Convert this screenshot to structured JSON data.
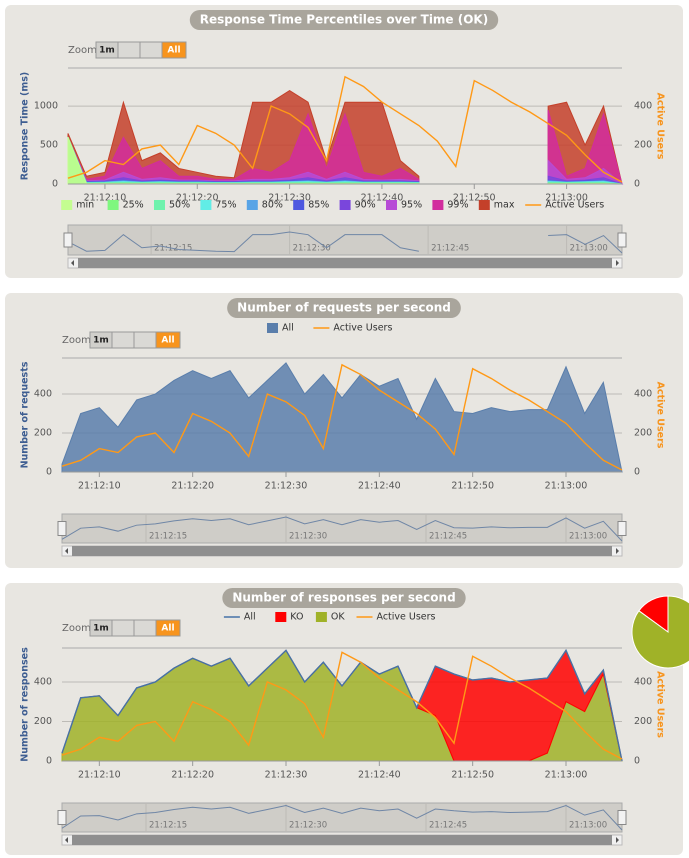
{
  "chart_data": [
    {
      "type": "area",
      "title": "Response Time Percentiles over Time (OK)",
      "ylabel": "Response Time (ms)",
      "y2label": "Active Users",
      "zoom": {
        "label": "Zoom",
        "buttons": [
          "1m",
          "All"
        ]
      },
      "x": [
        "21:12:06",
        "21:12:08",
        "21:12:10",
        "21:12:12",
        "21:12:14",
        "21:12:16",
        "21:12:18",
        "21:12:20",
        "21:12:22",
        "21:12:24",
        "21:12:26",
        "21:12:28",
        "21:12:30",
        "21:12:32",
        "21:12:34",
        "21:12:36",
        "21:12:38",
        "21:12:40",
        "21:12:42",
        "21:12:44",
        "21:12:46",
        "21:12:48",
        "21:12:50",
        "21:12:52",
        "21:12:54",
        "21:12:56",
        "21:12:58",
        "21:13:00",
        "21:13:02",
        "21:13:04",
        "21:13:06"
      ],
      "xticks": [
        "21:12:10",
        "21:12:20",
        "21:12:30",
        "21:12:40",
        "21:12:50",
        "21:13:00"
      ],
      "navigator_ticks": [
        "21:12:15",
        "21:12:30",
        "21:12:45",
        "21:13:00"
      ],
      "ylim": [
        0,
        1490
      ],
      "yticks": [
        0,
        500,
        1000
      ],
      "y2lim": [
        0,
        595
      ],
      "y2ticks": [
        0,
        200,
        400
      ],
      "grid": true,
      "stacked": false,
      "series": [
        {
          "name": "min",
          "kind": "area",
          "color": "#c4fd90",
          "values": [
            600,
            5,
            5,
            5,
            5,
            5,
            5,
            5,
            5,
            5,
            5,
            5,
            5,
            5,
            5,
            5,
            5,
            5,
            5,
            5,
            null,
            null,
            null,
            null,
            null,
            null,
            5,
            5,
            5,
            5,
            0
          ]
        },
        {
          "name": "25%",
          "kind": "area",
          "color": "#7ff77f",
          "values": [
            600,
            8,
            9,
            10,
            9,
            10,
            9,
            9,
            8,
            8,
            9,
            9,
            10,
            10,
            9,
            10,
            9,
            9,
            9,
            8,
            null,
            null,
            null,
            null,
            null,
            null,
            10,
            9,
            10,
            10,
            0
          ]
        },
        {
          "name": "50%",
          "kind": "area",
          "color": "#6ff2ad",
          "values": [
            600,
            12,
            14,
            18,
            14,
            16,
            14,
            14,
            12,
            12,
            14,
            14,
            16,
            18,
            14,
            18,
            14,
            14,
            14,
            12,
            null,
            null,
            null,
            null,
            null,
            null,
            18,
            14,
            16,
            18,
            0
          ]
        },
        {
          "name": "75%",
          "kind": "area",
          "color": "#61ede6",
          "values": [
            600,
            18,
            20,
            30,
            20,
            25,
            20,
            20,
            18,
            18,
            20,
            20,
            25,
            30,
            20,
            30,
            20,
            20,
            20,
            18,
            null,
            null,
            null,
            null,
            null,
            null,
            30,
            20,
            25,
            30,
            0
          ]
        },
        {
          "name": "80%",
          "kind": "area",
          "color": "#58a4e6",
          "values": [
            600,
            20,
            25,
            40,
            25,
            30,
            25,
            25,
            20,
            20,
            25,
            25,
            30,
            40,
            25,
            40,
            25,
            25,
            25,
            20,
            null,
            null,
            null,
            null,
            null,
            null,
            40,
            25,
            30,
            40,
            0
          ]
        },
        {
          "name": "85%",
          "kind": "area",
          "color": "#4f59e0",
          "values": [
            600,
            25,
            30,
            50,
            30,
            40,
            30,
            30,
            25,
            25,
            30,
            30,
            40,
            50,
            30,
            50,
            30,
            30,
            30,
            25,
            null,
            null,
            null,
            null,
            null,
            null,
            50,
            30,
            40,
            50,
            0
          ]
        },
        {
          "name": "90%",
          "kind": "area",
          "color": "#7a46dc",
          "values": [
            600,
            30,
            40,
            80,
            40,
            50,
            40,
            40,
            30,
            30,
            40,
            40,
            50,
            80,
            40,
            80,
            40,
            40,
            40,
            30,
            null,
            null,
            null,
            null,
            null,
            null,
            100,
            40,
            50,
            80,
            0
          ]
        },
        {
          "name": "95%",
          "kind": "area",
          "color": "#b74bd6",
          "values": [
            600,
            40,
            50,
            150,
            60,
            80,
            50,
            50,
            40,
            40,
            60,
            60,
            80,
            150,
            60,
            150,
            60,
            50,
            60,
            40,
            null,
            null,
            null,
            null,
            null,
            null,
            300,
            60,
            80,
            200,
            0
          ]
        },
        {
          "name": "99%",
          "kind": "area",
          "color": "#d22d9e",
          "values": [
            600,
            60,
            100,
            600,
            200,
            300,
            100,
            100,
            60,
            60,
            200,
            150,
            300,
            900,
            200,
            900,
            150,
            100,
            200,
            60,
            null,
            null,
            null,
            null,
            null,
            null,
            950,
            100,
            200,
            900,
            0
          ]
        },
        {
          "name": "max",
          "kind": "area",
          "color": "#c4402a",
          "values": [
            650,
            100,
            150,
            1050,
            300,
            400,
            200,
            150,
            100,
            80,
            1050,
            1050,
            1200,
            1050,
            300,
            1050,
            1050,
            1050,
            300,
            100,
            null,
            null,
            null,
            null,
            null,
            null,
            1000,
            1050,
            500,
            1000,
            0
          ]
        },
        {
          "name": "Active Users",
          "kind": "line",
          "axis": "y2",
          "color": "#ff9916",
          "values": [
            30,
            60,
            120,
            100,
            180,
            200,
            100,
            300,
            260,
            200,
            80,
            400,
            360,
            290,
            120,
            550,
            500,
            420,
            360,
            300,
            220,
            90,
            530,
            480,
            420,
            370,
            310,
            250,
            150,
            60,
            10
          ]
        }
      ]
    },
    {
      "type": "area",
      "title": "Number of requests per second",
      "ylabel": "Number of requests",
      "y2label": "Active Users",
      "zoom": {
        "label": "Zoom",
        "buttons": [
          "1m",
          "All"
        ]
      },
      "x": [
        "21:12:06",
        "21:12:08",
        "21:12:10",
        "21:12:12",
        "21:12:14",
        "21:12:16",
        "21:12:18",
        "21:12:20",
        "21:12:22",
        "21:12:24",
        "21:12:26",
        "21:12:28",
        "21:12:30",
        "21:12:32",
        "21:12:34",
        "21:12:36",
        "21:12:38",
        "21:12:40",
        "21:12:42",
        "21:12:44",
        "21:12:46",
        "21:12:48",
        "21:12:50",
        "21:12:52",
        "21:12:54",
        "21:12:56",
        "21:12:58",
        "21:13:00",
        "21:13:02",
        "21:13:04",
        "21:13:06"
      ],
      "xticks": [
        "21:12:10",
        "21:12:20",
        "21:12:30",
        "21:12:40",
        "21:12:50",
        "21:13:00"
      ],
      "navigator_ticks": [
        "21:12:15",
        "21:12:30",
        "21:12:45",
        "21:13:00"
      ],
      "ylim": [
        0,
        585
      ],
      "yticks": [
        0,
        200,
        400
      ],
      "y2lim": [
        0,
        585
      ],
      "y2ticks": [
        0,
        200,
        400
      ],
      "grid": true,
      "stacked": false,
      "series": [
        {
          "name": "All",
          "kind": "area",
          "color": "#5a7eab",
          "values": [
            40,
            300,
            330,
            230,
            370,
            400,
            470,
            520,
            480,
            520,
            380,
            470,
            560,
            400,
            500,
            380,
            500,
            440,
            480,
            270,
            480,
            310,
            300,
            330,
            310,
            320,
            320,
            540,
            300,
            460,
            0
          ]
        },
        {
          "name": "Active Users",
          "kind": "line",
          "axis": "y2",
          "color": "#ff9916",
          "values": [
            30,
            60,
            120,
            100,
            180,
            200,
            100,
            300,
            260,
            200,
            80,
            400,
            360,
            290,
            120,
            550,
            500,
            420,
            360,
            300,
            220,
            90,
            530,
            480,
            420,
            370,
            310,
            250,
            150,
            60,
            10
          ]
        }
      ]
    },
    {
      "type": "area",
      "title": "Number of responses per second",
      "ylabel": "Number of responses",
      "y2label": "Active Users",
      "zoom": {
        "label": "Zoom",
        "buttons": [
          "1m",
          "All"
        ]
      },
      "x": [
        "21:12:06",
        "21:12:08",
        "21:12:10",
        "21:12:12",
        "21:12:14",
        "21:12:16",
        "21:12:18",
        "21:12:20",
        "21:12:22",
        "21:12:24",
        "21:12:26",
        "21:12:28",
        "21:12:30",
        "21:12:32",
        "21:12:34",
        "21:12:36",
        "21:12:38",
        "21:12:40",
        "21:12:42",
        "21:12:44",
        "21:12:46",
        "21:12:48",
        "21:12:50",
        "21:12:52",
        "21:12:54",
        "21:12:56",
        "21:12:58",
        "21:13:00",
        "21:13:02",
        "21:13:04",
        "21:13:06"
      ],
      "xticks": [
        "21:12:10",
        "21:12:20",
        "21:12:30",
        "21:12:40",
        "21:12:50",
        "21:13:00"
      ],
      "navigator_ticks": [
        "21:12:15",
        "21:12:30",
        "21:12:45",
        "21:13:00"
      ],
      "ylim": [
        0,
        572
      ],
      "yticks": [
        0,
        200,
        400
      ],
      "y2lim": [
        0,
        572
      ],
      "y2ticks": [
        0,
        200,
        400
      ],
      "grid": true,
      "stacked": true,
      "series": [
        {
          "name": "All",
          "kind": "line",
          "color": "#4572a7",
          "values": [
            40,
            320,
            330,
            230,
            370,
            400,
            470,
            520,
            480,
            520,
            380,
            470,
            560,
            400,
            500,
            380,
            500,
            440,
            480,
            270,
            480,
            440,
            410,
            420,
            400,
            410,
            420,
            560,
            340,
            460,
            0
          ]
        },
        {
          "name": "KO",
          "kind": "area",
          "color": "#ff0000",
          "values": [
            0,
            0,
            0,
            0,
            0,
            0,
            0,
            0,
            0,
            0,
            0,
            0,
            0,
            0,
            0,
            0,
            0,
            0,
            0,
            0,
            250,
            440,
            410,
            420,
            400,
            410,
            380,
            260,
            90,
            20,
            0
          ]
        },
        {
          "name": "OK",
          "kind": "area",
          "color": "#a0b228",
          "values": [
            40,
            320,
            330,
            230,
            370,
            400,
            470,
            520,
            480,
            520,
            380,
            470,
            560,
            400,
            500,
            380,
            500,
            440,
            480,
            270,
            230,
            0,
            0,
            0,
            0,
            0,
            40,
            300,
            250,
            440,
            0
          ]
        },
        {
          "name": "Active Users",
          "kind": "line",
          "axis": "y2",
          "color": "#ff9916",
          "values": [
            30,
            60,
            120,
            100,
            180,
            200,
            100,
            300,
            260,
            200,
            80,
            400,
            360,
            290,
            120,
            550,
            500,
            420,
            360,
            300,
            220,
            90,
            530,
            480,
            420,
            370,
            310,
            250,
            150,
            60,
            10
          ]
        }
      ]
    },
    {
      "type": "pie",
      "values": [
        15,
        85
      ],
      "colors": [
        "#ff0000",
        "#a0b228"
      ]
    }
  ]
}
